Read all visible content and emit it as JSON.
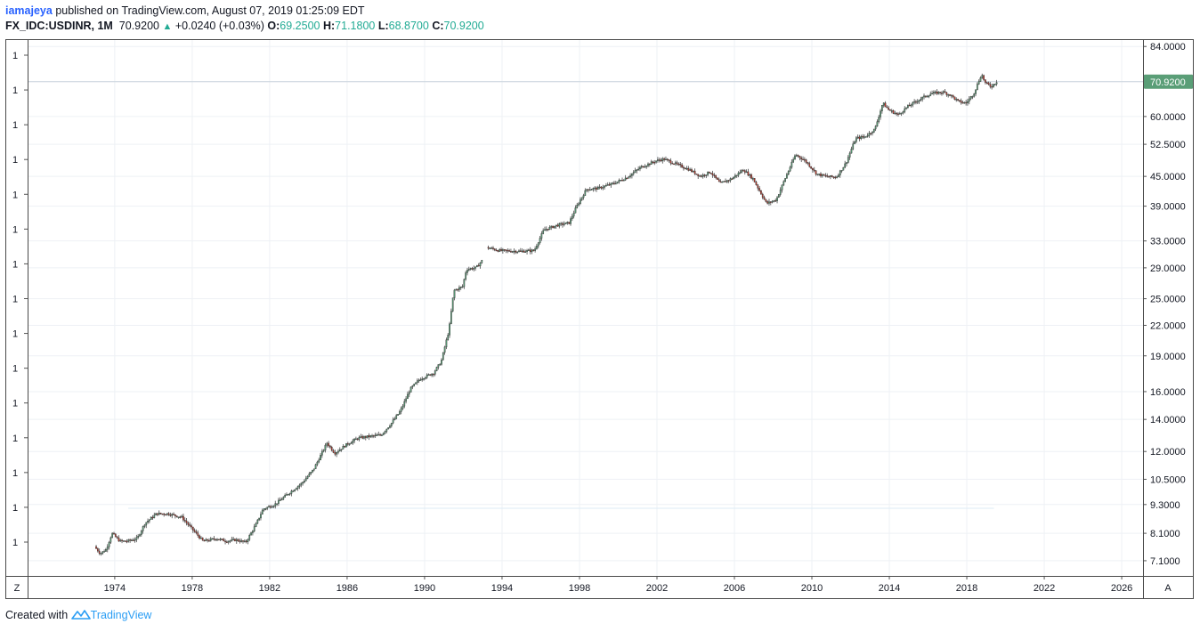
{
  "header": {
    "user": "iamajeya",
    "published_text": "published on TradingView.com, August 07, 2019 01:25:09 EDT",
    "symbol": "FX_IDC:USDINR, 1M",
    "last": "70.9200",
    "change": "+0.0240 (+0.03%)",
    "o_label": "O:",
    "o_value": "69.2500",
    "h_label": "H:",
    "h_value": "71.1800",
    "l_label": "L:",
    "l_value": "68.8700",
    "c_label": "C:",
    "c_value": "70.9200"
  },
  "footer": {
    "created_with": "Created with",
    "brand": "TradingView"
  },
  "colors": {
    "up": "#5a9e77",
    "down": "#c0392b",
    "grid": "#eef1f5",
    "price_tag": "#5a9e77",
    "accent": "#2962ff"
  },
  "controls": {
    "left_button": "Z",
    "right_button": "A"
  },
  "chart_data": {
    "type": "candlestick",
    "symbol": "FX_IDC:USDINR",
    "interval": "1M",
    "price_scale": "log",
    "ylim": [
      6.6,
      87
    ],
    "xlim": [
      1969.5,
      2027.1
    ],
    "y_ticks": [
      84,
      70.92,
      60,
      52.5,
      45,
      39,
      33,
      29,
      25,
      22,
      19,
      16,
      14,
      12,
      10.5,
      9.3,
      8.1,
      7.1
    ],
    "y_tick_labels": [
      "84.0000",
      "70.9200",
      "60.0000",
      "52.5000",
      "45.0000",
      "39.0000",
      "33.0000",
      "29.0000",
      "25.0000",
      "22.0000",
      "19.0000",
      "16.0000",
      "14.0000",
      "12.0000",
      "10.5000",
      "9.3000",
      "8.1000",
      "7.1000"
    ],
    "x_ticks": [
      1974,
      1978,
      1982,
      1986,
      1990,
      1994,
      1998,
      2002,
      2006,
      2010,
      2014,
      2018,
      2022,
      2026
    ],
    "left_axis_labels": [
      "1",
      "1",
      "1",
      "1",
      "1",
      "1",
      "1",
      "1",
      "1",
      "1",
      "1",
      "1",
      "1",
      "1",
      "1"
    ],
    "last_price": 70.92,
    "last_price_label": "70.9200",
    "series_start": 1973.0,
    "series_end": 2019.58,
    "gap": [
      1993.0,
      1993.25
    ],
    "price_path": [
      [
        1973.0,
        7.6
      ],
      [
        1973.3,
        7.35
      ],
      [
        1973.6,
        7.5
      ],
      [
        1973.9,
        8.1
      ],
      [
        1974.3,
        7.8
      ],
      [
        1974.7,
        7.8
      ],
      [
        1975.2,
        7.9
      ],
      [
        1975.6,
        8.5
      ],
      [
        1976.2,
        8.9
      ],
      [
        1976.8,
        8.9
      ],
      [
        1977.5,
        8.75
      ],
      [
        1978.0,
        8.3
      ],
      [
        1978.6,
        7.8
      ],
      [
        1979.3,
        7.9
      ],
      [
        1979.8,
        7.8
      ],
      [
        1980.3,
        7.85
      ],
      [
        1980.8,
        7.75
      ],
      [
        1981.3,
        8.4
      ],
      [
        1981.7,
        9.1
      ],
      [
        1982.3,
        9.3
      ],
      [
        1983.0,
        9.8
      ],
      [
        1983.7,
        10.3
      ],
      [
        1984.3,
        11.0
      ],
      [
        1985.0,
        12.5
      ],
      [
        1985.4,
        11.9
      ],
      [
        1986.0,
        12.4
      ],
      [
        1986.6,
        12.8
      ],
      [
        1987.2,
        12.9
      ],
      [
        1987.8,
        13.0
      ],
      [
        1988.3,
        13.7
      ],
      [
        1988.8,
        14.6
      ],
      [
        1989.3,
        16.2
      ],
      [
        1989.8,
        17.0
      ],
      [
        1990.5,
        17.5
      ],
      [
        1990.9,
        18.5
      ],
      [
        1991.3,
        21.5
      ],
      [
        1991.55,
        26.0
      ],
      [
        1992.0,
        26.5
      ],
      [
        1992.2,
        28.8
      ],
      [
        1992.7,
        29.0
      ],
      [
        1993.0,
        30.0
      ],
      [
        1993.25,
        32.0
      ],
      [
        1993.9,
        31.5
      ],
      [
        1995.0,
        31.4
      ],
      [
        1995.7,
        31.5
      ],
      [
        1996.2,
        34.8
      ],
      [
        1996.9,
        35.6
      ],
      [
        1997.5,
        36.0
      ],
      [
        1997.9,
        39.0
      ],
      [
        1998.4,
        42.3
      ],
      [
        1999.0,
        42.5
      ],
      [
        1999.8,
        43.5
      ],
      [
        2000.5,
        44.8
      ],
      [
        2001.2,
        47.0
      ],
      [
        2002.0,
        48.5
      ],
      [
        2002.4,
        48.9
      ],
      [
        2003.0,
        47.8
      ],
      [
        2003.7,
        46.5
      ],
      [
        2004.3,
        45.0
      ],
      [
        2004.8,
        46.0
      ],
      [
        2005.3,
        43.5
      ],
      [
        2005.9,
        44.5
      ],
      [
        2006.5,
        46.5
      ],
      [
        2007.0,
        44.5
      ],
      [
        2007.7,
        39.5
      ],
      [
        2008.2,
        40.2
      ],
      [
        2008.6,
        44.0
      ],
      [
        2009.2,
        50.0
      ],
      [
        2009.7,
        48.5
      ],
      [
        2010.3,
        45.5
      ],
      [
        2010.8,
        45.0
      ],
      [
        2011.3,
        44.8
      ],
      [
        2011.8,
        48.0
      ],
      [
        2012.3,
        54.0
      ],
      [
        2012.8,
        54.5
      ],
      [
        2013.3,
        56.5
      ],
      [
        2013.7,
        64.0
      ],
      [
        2014.0,
        62.0
      ],
      [
        2014.5,
        60.5
      ],
      [
        2015.0,
        63.0
      ],
      [
        2015.7,
        65.5
      ],
      [
        2016.2,
        67.0
      ],
      [
        2016.8,
        67.5
      ],
      [
        2017.2,
        66.5
      ],
      [
        2017.6,
        64.5
      ],
      [
        2018.0,
        64.0
      ],
      [
        2018.4,
        67.0
      ],
      [
        2018.8,
        73.5
      ],
      [
        2019.0,
        70.5
      ],
      [
        2019.3,
        69.3
      ],
      [
        2019.58,
        70.92
      ]
    ]
  }
}
